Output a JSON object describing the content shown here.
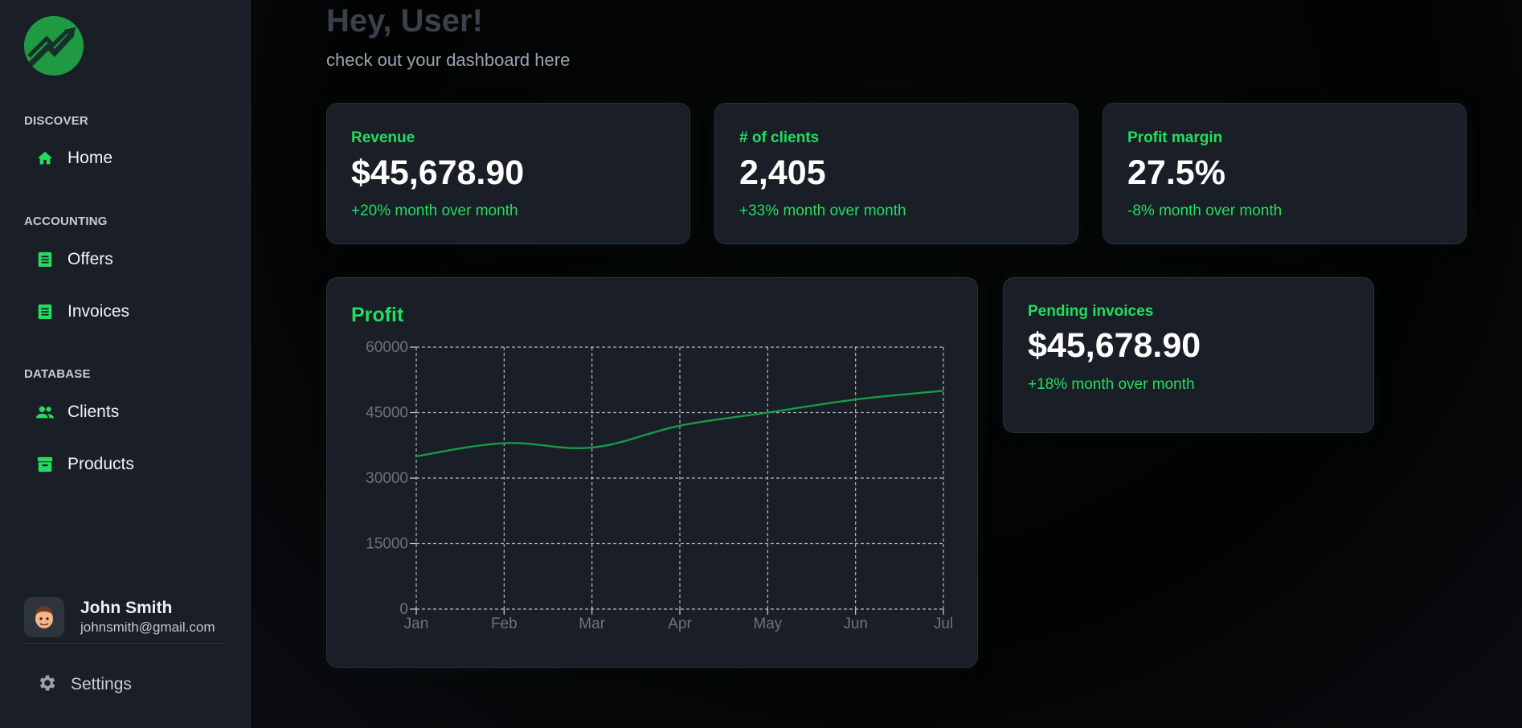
{
  "sidebar": {
    "sections": [
      {
        "title": "DISCOVER",
        "items": [
          {
            "label": "Home",
            "icon": "home-icon"
          }
        ]
      },
      {
        "title": "ACCOUNTING",
        "items": [
          {
            "label": "Offers",
            "icon": "receipt-icon"
          },
          {
            "label": "Invoices",
            "icon": "receipt-icon"
          }
        ]
      },
      {
        "title": "DATABASE",
        "items": [
          {
            "label": "Clients",
            "icon": "people-icon"
          },
          {
            "label": "Products",
            "icon": "archive-icon"
          }
        ]
      }
    ],
    "user": {
      "name": "John Smith",
      "email": "johnsmith@gmail.com"
    },
    "settings_label": "Settings"
  },
  "header": {
    "title": "Hey, User!",
    "subtitle": "check out your dashboard here"
  },
  "stats": [
    {
      "label": "Revenue",
      "value": "$45,678.90",
      "delta": "+20% month over month"
    },
    {
      "label": "# of clients",
      "value": "2,405",
      "delta": "+33% month over month"
    },
    {
      "label": "Profit margin",
      "value": "27.5%",
      "delta": "-8% month over month"
    }
  ],
  "pending": {
    "label": "Pending invoices",
    "value": "$45,678.90",
    "delta": "+18% month over month"
  },
  "colors": {
    "accent": "#22dd5f",
    "line": "#169c45",
    "card_bg": "#1a1f27",
    "sidebar_bg": "#1a1f27"
  },
  "chart_data": {
    "type": "line",
    "title": "Profit",
    "categories": [
      "Jan",
      "Feb",
      "Mar",
      "Apr",
      "May",
      "Jun",
      "Jul"
    ],
    "series": [
      {
        "values": [
          35000,
          38000,
          37000,
          42000,
          45000,
          48000,
          50000
        ]
      }
    ],
    "ylim": [
      0,
      60000
    ],
    "yticks": [
      0,
      15000,
      30000,
      45000,
      60000
    ],
    "grid": true
  }
}
